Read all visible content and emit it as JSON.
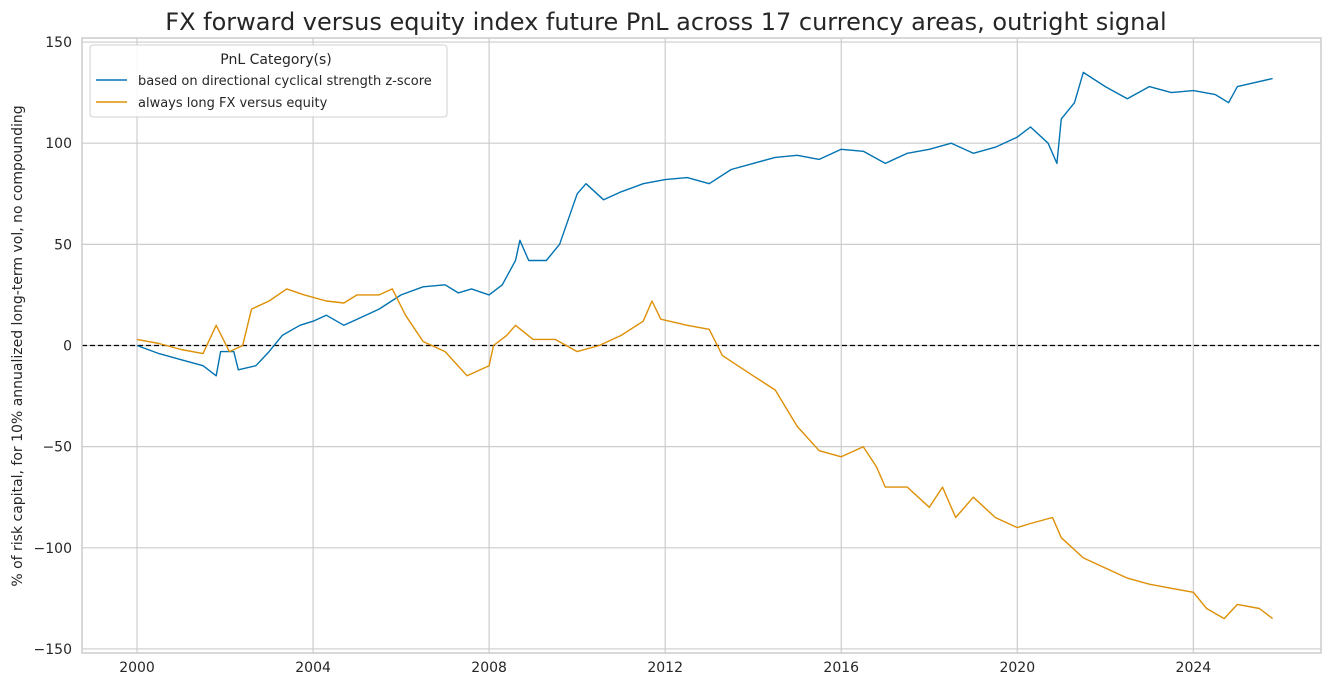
{
  "chart_data": {
    "type": "line",
    "title": "FX forward versus equity index future PnL across 17 currency areas, outright signal",
    "xlabel": "",
    "ylabel": "% of risk capital, for 10% annualized long-term vol, no compounding",
    "xlim": [
      1998.75,
      2026.9
    ],
    "ylim": [
      -152,
      152
    ],
    "xticks": [
      2000,
      2004,
      2008,
      2012,
      2016,
      2020,
      2024
    ],
    "xtick_labels": [
      "2000",
      "2004",
      "2008",
      "2012",
      "2016",
      "2020",
      "2024"
    ],
    "yticks": [
      150,
      100,
      50,
      0,
      -50,
      -100,
      -150
    ],
    "ytick_labels": [
      "150",
      "100",
      "50",
      "0",
      "−50",
      "−100",
      "−150"
    ],
    "grid": true,
    "zero_line": true,
    "legend": {
      "title": "PnL Category(s)",
      "position": "top-left"
    },
    "series": [
      {
        "name": "based on directional cyclical strength z-score",
        "color": "#0173b2",
        "x": [
          2000.0,
          2000.5,
          2001.0,
          2001.5,
          2001.8,
          2001.9,
          2002.2,
          2002.3,
          2002.7,
          2003.0,
          2003.3,
          2003.7,
          2004.0,
          2004.3,
          2004.7,
          2005.0,
          2005.5,
          2006.0,
          2006.5,
          2007.0,
          2007.3,
          2007.6,
          2008.0,
          2008.3,
          2008.6,
          2008.7,
          2008.9,
          2009.3,
          2009.6,
          2010.0,
          2010.2,
          2010.6,
          2011.0,
          2011.5,
          2012.0,
          2012.5,
          2013.0,
          2013.5,
          2014.0,
          2014.5,
          2015.0,
          2015.5,
          2016.0,
          2016.5,
          2017.0,
          2017.5,
          2018.0,
          2018.5,
          2019.0,
          2019.5,
          2020.0,
          2020.3,
          2020.7,
          2020.9,
          2021.0,
          2021.3,
          2021.5,
          2022.0,
          2022.5,
          2023.0,
          2023.5,
          2024.0,
          2024.5,
          2024.8,
          2025.0,
          2025.8
        ],
        "y": [
          0,
          -4,
          -7,
          -10,
          -15,
          -3,
          -3,
          -12,
          -10,
          -3,
          5,
          10,
          12,
          15,
          10,
          13,
          18,
          25,
          29,
          30,
          26,
          28,
          25,
          30,
          42,
          52,
          42,
          42,
          50,
          75,
          80,
          72,
          76,
          80,
          82,
          83,
          80,
          87,
          90,
          93,
          94,
          92,
          97,
          96,
          90,
          95,
          97,
          100,
          95,
          98,
          103,
          108,
          100,
          90,
          112,
          120,
          135,
          128,
          122,
          128,
          125,
          126,
          124,
          120,
          128,
          132
        ]
      },
      {
        "name": "always long FX versus equity",
        "color": "#de8f05",
        "x": [
          2000.0,
          2000.5,
          2001.0,
          2001.5,
          2001.8,
          2002.1,
          2002.4,
          2002.6,
          2003.0,
          2003.4,
          2003.8,
          2004.3,
          2004.7,
          2005.0,
          2005.5,
          2005.8,
          2006.1,
          2006.5,
          2007.0,
          2007.5,
          2008.0,
          2008.1,
          2008.4,
          2008.6,
          2009.0,
          2009.5,
          2010.0,
          2010.5,
          2011.0,
          2011.5,
          2011.7,
          2011.9,
          2012.5,
          2013.0,
          2013.3,
          2014.0,
          2014.5,
          2015.0,
          2015.5,
          2016.0,
          2016.5,
          2016.8,
          2017.0,
          2017.5,
          2018.0,
          2018.3,
          2018.6,
          2019.0,
          2019.5,
          2020.0,
          2020.3,
          2020.8,
          2021.0,
          2021.5,
          2022.0,
          2022.5,
          2023.0,
          2023.5,
          2024.0,
          2024.3,
          2024.7,
          2025.0,
          2025.5,
          2025.8
        ],
        "y": [
          3,
          1,
          -2,
          -4,
          10,
          -3,
          0,
          18,
          22,
          28,
          25,
          22,
          21,
          25,
          25,
          28,
          15,
          2,
          -3,
          -15,
          -10,
          0,
          5,
          10,
          3,
          3,
          -3,
          0,
          5,
          12,
          22,
          13,
          10,
          8,
          -5,
          -15,
          -22,
          -40,
          -52,
          -55,
          -50,
          -60,
          -70,
          -70,
          -80,
          -70,
          -85,
          -75,
          -85,
          -90,
          -88,
          -85,
          -95,
          -105,
          -110,
          -115,
          -118,
          -120,
          -122,
          -130,
          -135,
          -128,
          -130,
          -135
        ]
      }
    ]
  }
}
